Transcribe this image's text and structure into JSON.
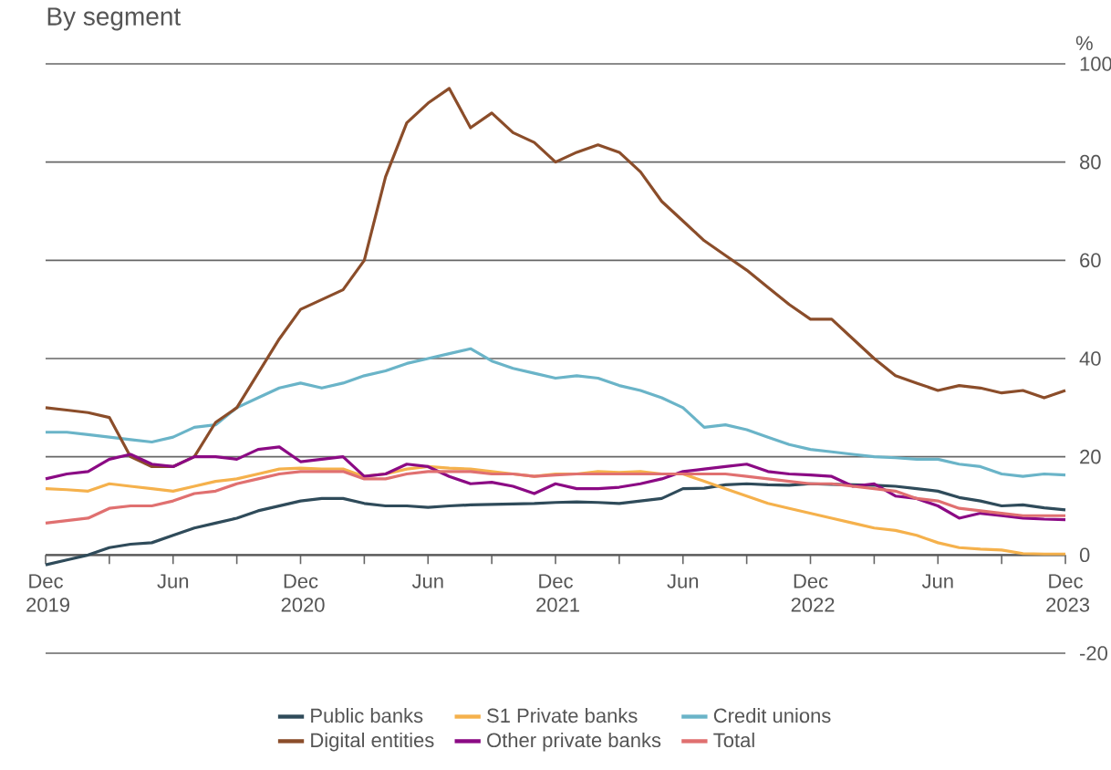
{
  "chart_data": {
    "type": "line",
    "title": "By segment",
    "ylabel": "%",
    "x": [
      "2019-12",
      "2020-01",
      "2020-02",
      "2020-03",
      "2020-04",
      "2020-05",
      "2020-06",
      "2020-07",
      "2020-08",
      "2020-09",
      "2020-10",
      "2020-11",
      "2020-12",
      "2021-01",
      "2021-02",
      "2021-03",
      "2021-04",
      "2021-05",
      "2021-06",
      "2021-07",
      "2021-08",
      "2021-09",
      "2021-10",
      "2021-11",
      "2021-12",
      "2022-01",
      "2022-02",
      "2022-03",
      "2022-04",
      "2022-05",
      "2022-06",
      "2022-07",
      "2022-08",
      "2022-09",
      "2022-10",
      "2022-11",
      "2022-12",
      "2023-01",
      "2023-02",
      "2023-03",
      "2023-04",
      "2023-05",
      "2023-06",
      "2023-07",
      "2023-08",
      "2023-09",
      "2023-10",
      "2023-11",
      "2023-12"
    ],
    "series": [
      {
        "name": "Public banks",
        "color": "#2f4b5a",
        "values": [
          -2,
          -1,
          0,
          1.5,
          2.2,
          2.5,
          4,
          5.5,
          6.5,
          7.5,
          9,
          10,
          11,
          11.5,
          11.5,
          10.5,
          10,
          10,
          9.7,
          10,
          10.2,
          10.3,
          10.4,
          10.5,
          10.7,
          10.8,
          10.7,
          10.5,
          11,
          11.5,
          13.5,
          13.6,
          14.3,
          14.5,
          14.3,
          14.2,
          14.5,
          14.4,
          14.3,
          14.2,
          14,
          13.5,
          13,
          11.7,
          11,
          10,
          10.2,
          9.6,
          9.2
        ]
      },
      {
        "name": "S1 Private banks",
        "color": "#f5b14c",
        "values": [
          13.5,
          13.3,
          13,
          14.5,
          14,
          13.5,
          13,
          14,
          15,
          15.5,
          16.5,
          17.5,
          17.7,
          17.5,
          17.5,
          16,
          16.5,
          17.5,
          18,
          17.7,
          17.5,
          17,
          16.5,
          16,
          16.5,
          16.5,
          17,
          16.8,
          17,
          16.5,
          16.5,
          15,
          13.5,
          12,
          10.5,
          9.5,
          8.5,
          7.5,
          6.5,
          5.5,
          5,
          4,
          2.5,
          1.5,
          1.2,
          1,
          0.3,
          0.2,
          0.2
        ]
      },
      {
        "name": "Credit unions",
        "color": "#6ab4c8",
        "values": [
          25,
          25,
          24.5,
          24,
          23.5,
          23,
          24,
          26,
          26.5,
          30,
          32,
          34,
          35,
          34,
          35,
          36.5,
          37.5,
          39,
          40,
          41,
          42,
          39.5,
          38,
          37,
          36,
          36.5,
          36,
          34.5,
          33.5,
          32,
          30,
          26,
          26.5,
          25.5,
          24,
          22.5,
          21.5,
          21,
          20.5,
          20,
          19.8,
          19.5,
          19.5,
          18.5,
          18,
          16.5,
          16,
          16.5,
          16.3
        ]
      },
      {
        "name": "Digital entities",
        "color": "#8b4d2a",
        "values": [
          30,
          29.5,
          29,
          28,
          20,
          18,
          18,
          20,
          27,
          30,
          37,
          44,
          50,
          52,
          54,
          60,
          77,
          88,
          92,
          95,
          87,
          90,
          86,
          84,
          80,
          82,
          83.5,
          82,
          78,
          72,
          68,
          64,
          61,
          58,
          54.5,
          51,
          48,
          48,
          44,
          40,
          36.5,
          35,
          33.5,
          34.5,
          34,
          33,
          33.5,
          32,
          33.5
        ]
      },
      {
        "name": "Other private banks",
        "color": "#8b0a84",
        "values": [
          15.5,
          16.5,
          17,
          19.5,
          20.5,
          18.5,
          18,
          20,
          20,
          19.5,
          21.5,
          22,
          19,
          19.5,
          20,
          16,
          16.5,
          18.5,
          18,
          16,
          14.5,
          14.8,
          14,
          12.5,
          14.5,
          13.5,
          13.5,
          13.8,
          14.5,
          15.5,
          17,
          17.5,
          18,
          18.5,
          17,
          16.5,
          16.3,
          16,
          14,
          14.5,
          12,
          11.5,
          10,
          7.5,
          8.5,
          8,
          7.5,
          7.3,
          7.2
        ]
      },
      {
        "name": "Total",
        "color": "#e07070",
        "values": [
          6.5,
          7,
          7.5,
          9.5,
          10,
          10,
          11,
          12.5,
          13,
          14.5,
          15.5,
          16.5,
          17,
          17,
          17,
          15.5,
          15.5,
          16.5,
          17,
          17,
          17,
          16.5,
          16.5,
          16,
          16.3,
          16.5,
          16.5,
          16.5,
          16.5,
          16.5,
          16.5,
          16.5,
          16.5,
          16,
          15.5,
          15,
          14.5,
          14.5,
          14,
          13.5,
          13,
          11.5,
          11,
          9.5,
          9,
          8.5,
          8,
          8,
          8
        ]
      }
    ],
    "xlim": [
      "2019-12",
      "2023-12"
    ],
    "xticks": [
      {
        "value": "2019-12",
        "label": "Dec 2019"
      },
      {
        "value": "2020-03",
        "label": null
      },
      {
        "value": "2020-06",
        "label": "Jun"
      },
      {
        "value": "2020-09",
        "label": null
      },
      {
        "value": "2020-12",
        "label": "Dec 2020"
      },
      {
        "value": "2021-03",
        "label": null
      },
      {
        "value": "2021-06",
        "label": "Jun"
      },
      {
        "value": "2021-09",
        "label": null
      },
      {
        "value": "2021-12",
        "label": "Dec 2021"
      },
      {
        "value": "2022-03",
        "label": null
      },
      {
        "value": "2022-06",
        "label": "Jun"
      },
      {
        "value": "2022-09",
        "label": null
      },
      {
        "value": "2022-12",
        "label": "Dec 2022"
      },
      {
        "value": "2023-03",
        "label": null
      },
      {
        "value": "2023-06",
        "label": "Jun"
      },
      {
        "value": "2023-09",
        "label": null
      },
      {
        "value": "2023-12",
        "label": "Dec 2023"
      }
    ],
    "ylim": [
      -20,
      100
    ],
    "yticks": [
      -20,
      0,
      20,
      40,
      60,
      80,
      100
    ],
    "grid": "y",
    "legend": "bottom",
    "marker": "none",
    "line_style": "solid"
  }
}
